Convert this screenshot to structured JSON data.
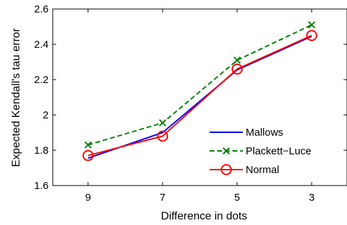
{
  "chart_data": {
    "type": "line",
    "title": "",
    "xlabel": "Difference in dots",
    "ylabel": "Expected Kendall's tau error",
    "categories": [
      "9",
      "7",
      "5",
      "3"
    ],
    "ylim": [
      1.6,
      2.6
    ],
    "yticks": [
      "1.6",
      "1.8",
      "2",
      "2.2",
      "2.4",
      "2.6"
    ],
    "grid": false,
    "legend_position": "bottom-right",
    "series": [
      {
        "name": "Mallows",
        "color": "#0000ff",
        "line_style": "solid",
        "marker": "none",
        "values": [
          1.755,
          1.9,
          2.255,
          2.445
        ]
      },
      {
        "name": "Plackett−Luce",
        "color": "#008000",
        "line_style": "dashed",
        "marker": "x",
        "values": [
          1.83,
          1.955,
          2.31,
          2.51
        ]
      },
      {
        "name": "Normal",
        "color": "#ff0000",
        "line_style": "solid",
        "marker": "circle",
        "values": [
          1.77,
          1.88,
          2.26,
          2.45
        ]
      }
    ]
  }
}
